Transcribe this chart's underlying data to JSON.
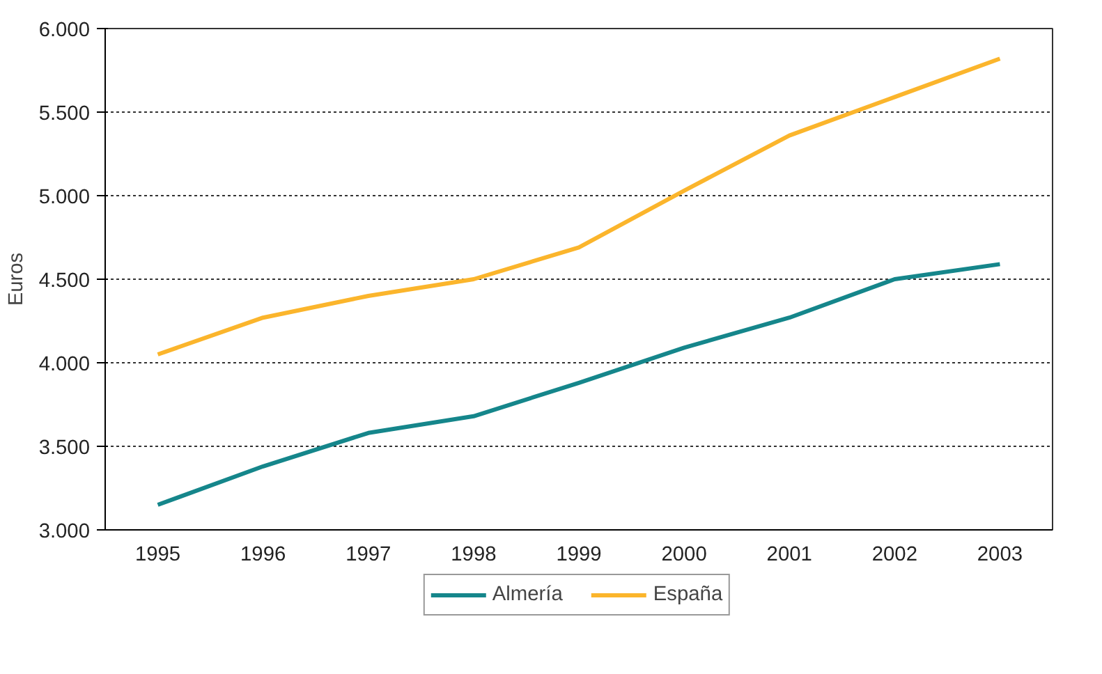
{
  "chart_data": {
    "type": "line",
    "ylabel": "Euros",
    "categories": [
      "1995",
      "1996",
      "1997",
      "1998",
      "1999",
      "2000",
      "2001",
      "2002",
      "2003"
    ],
    "series": [
      {
        "name": "Almería",
        "color": "#15868b",
        "values": [
          3150,
          3380,
          3580,
          3680,
          3880,
          4090,
          4270,
          4500,
          4590
        ]
      },
      {
        "name": "España",
        "color": "#fbb52c",
        "values": [
          4050,
          4270,
          4400,
          4500,
          4690,
          5030,
          5360,
          5590,
          5820
        ]
      }
    ],
    "ylim": [
      3000,
      6000
    ],
    "yticks": [
      {
        "value": 3000,
        "label": "3.000"
      },
      {
        "value": 3500,
        "label": "3.500"
      },
      {
        "value": 4000,
        "label": "4.000"
      },
      {
        "value": 4500,
        "label": "4.500"
      },
      {
        "value": 5000,
        "label": "5.000"
      },
      {
        "value": 5500,
        "label": "5.500"
      },
      {
        "value": 6000,
        "label": "6.000"
      }
    ],
    "grid": "y",
    "legend": "bottom",
    "marker": "none",
    "line_style": "solid"
  }
}
